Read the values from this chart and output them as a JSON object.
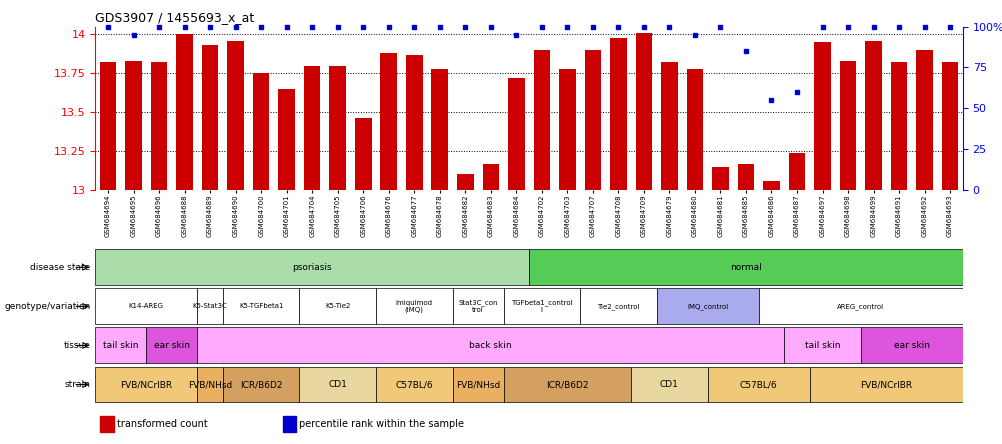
{
  "title": "GDS3907 / 1455693_x_at",
  "samples": [
    "GSM684694",
    "GSM684695",
    "GSM684696",
    "GSM684688",
    "GSM684689",
    "GSM684690",
    "GSM684700",
    "GSM684701",
    "GSM684704",
    "GSM684705",
    "GSM684706",
    "GSM684676",
    "GSM684677",
    "GSM684678",
    "GSM684682",
    "GSM684683",
    "GSM684684",
    "GSM684702",
    "GSM684703",
    "GSM684707",
    "GSM684708",
    "GSM684709",
    "GSM684679",
    "GSM684680",
    "GSM684681",
    "GSM684685",
    "GSM684686",
    "GSM684687",
    "GSM684697",
    "GSM684698",
    "GSM684699",
    "GSM684691",
    "GSM684692",
    "GSM684693"
  ],
  "bar_values": [
    13.82,
    13.83,
    13.82,
    14.0,
    13.93,
    13.96,
    13.75,
    13.65,
    13.8,
    13.8,
    13.46,
    13.88,
    13.87,
    13.78,
    13.1,
    13.17,
    13.72,
    13.9,
    13.78,
    13.9,
    13.98,
    14.01,
    13.82,
    13.78,
    13.15,
    13.17,
    13.06,
    13.24,
    13.95,
    13.83,
    13.96,
    13.82,
    13.9,
    13.82
  ],
  "percentile_values": [
    100,
    95,
    100,
    100,
    100,
    100,
    100,
    100,
    100,
    100,
    100,
    100,
    100,
    100,
    100,
    100,
    95,
    100,
    100,
    100,
    100,
    100,
    100,
    95,
    100,
    85,
    55,
    60,
    100,
    100,
    100,
    100,
    100,
    100
  ],
  "ylim_low": 13.0,
  "ylim_high": 14.05,
  "yticks_left": [
    13.0,
    13.25,
    13.5,
    13.75,
    14.0
  ],
  "ytick_labels_left": [
    "13",
    "13.25",
    "13.5",
    "13.75",
    "14"
  ],
  "yticks_right_pct": [
    0,
    25,
    50,
    75,
    100
  ],
  "ytick_labels_right": [
    "0",
    "25",
    "50",
    "75",
    "100%"
  ],
  "bar_color": "#cc0000",
  "percentile_color": "#0000cc",
  "disease_rows": [
    {
      "label": "psoriasis",
      "start": 0,
      "end": 16,
      "color": "#aaddaa"
    },
    {
      "label": "normal",
      "start": 17,
      "end": 33,
      "color": "#55cc55"
    }
  ],
  "genotype_rows": [
    {
      "label": "K14-AREG",
      "start": 0,
      "end": 3
    },
    {
      "label": "K5-Stat3C",
      "start": 4,
      "end": 4
    },
    {
      "label": "K5-TGFbeta1",
      "start": 5,
      "end": 7
    },
    {
      "label": "K5-Tie2",
      "start": 8,
      "end": 10
    },
    {
      "label": "imiquimod\n(IMQ)",
      "start": 11,
      "end": 13
    },
    {
      "label": "Stat3C_con\ntrol",
      "start": 14,
      "end": 15
    },
    {
      "label": "TGFbeta1_control\nl",
      "start": 16,
      "end": 18
    },
    {
      "label": "Tie2_control",
      "start": 19,
      "end": 21
    },
    {
      "label": "IMQ_control",
      "start": 22,
      "end": 25
    },
    {
      "label": "AREG_control",
      "start": 26,
      "end": 33
    }
  ],
  "genotype_colors": [
    "#ffffff",
    "#ffffff",
    "#ffffff",
    "#ffffff",
    "#ffffff",
    "#ffffff",
    "#ffffff",
    "#ffffff",
    "#aaaaee",
    "#ffffff"
  ],
  "tissue_rows": [
    {
      "label": "tail skin",
      "start": 0,
      "end": 1,
      "color": "#ffaaff"
    },
    {
      "label": "ear skin",
      "start": 2,
      "end": 3,
      "color": "#dd55dd"
    },
    {
      "label": "back skin",
      "start": 4,
      "end": 26,
      "color": "#ffaaff"
    },
    {
      "label": "tail skin",
      "start": 27,
      "end": 29,
      "color": "#ffaaff"
    },
    {
      "label": "ear skin",
      "start": 30,
      "end": 33,
      "color": "#dd55dd"
    }
  ],
  "strain_rows": [
    {
      "label": "FVB/NCrIBR",
      "start": 0,
      "end": 3,
      "color": "#f0c878"
    },
    {
      "label": "FVB/NHsd",
      "start": 4,
      "end": 4,
      "color": "#e8b060"
    },
    {
      "label": "ICR/B6D2",
      "start": 5,
      "end": 7,
      "color": "#d4a060"
    },
    {
      "label": "CD1",
      "start": 8,
      "end": 10,
      "color": "#e8d8a0"
    },
    {
      "label": "C57BL/6",
      "start": 11,
      "end": 13,
      "color": "#f0c878"
    },
    {
      "label": "FVB/NHsd",
      "start": 14,
      "end": 15,
      "color": "#e8b060"
    },
    {
      "label": "ICR/B6D2",
      "start": 16,
      "end": 20,
      "color": "#d4a060"
    },
    {
      "label": "CD1",
      "start": 21,
      "end": 23,
      "color": "#e8d8a0"
    },
    {
      "label": "C57BL/6",
      "start": 24,
      "end": 27,
      "color": "#f0c878"
    },
    {
      "label": "FVB/NCrIBR",
      "start": 28,
      "end": 33,
      "color": "#f0c878"
    }
  ],
  "row_label_names": [
    "disease state",
    "genotype/variation",
    "tissue",
    "strain"
  ],
  "legend_items": [
    {
      "color": "#cc0000",
      "label": "transformed count"
    },
    {
      "color": "#0000cc",
      "label": "percentile rank within the sample"
    }
  ]
}
